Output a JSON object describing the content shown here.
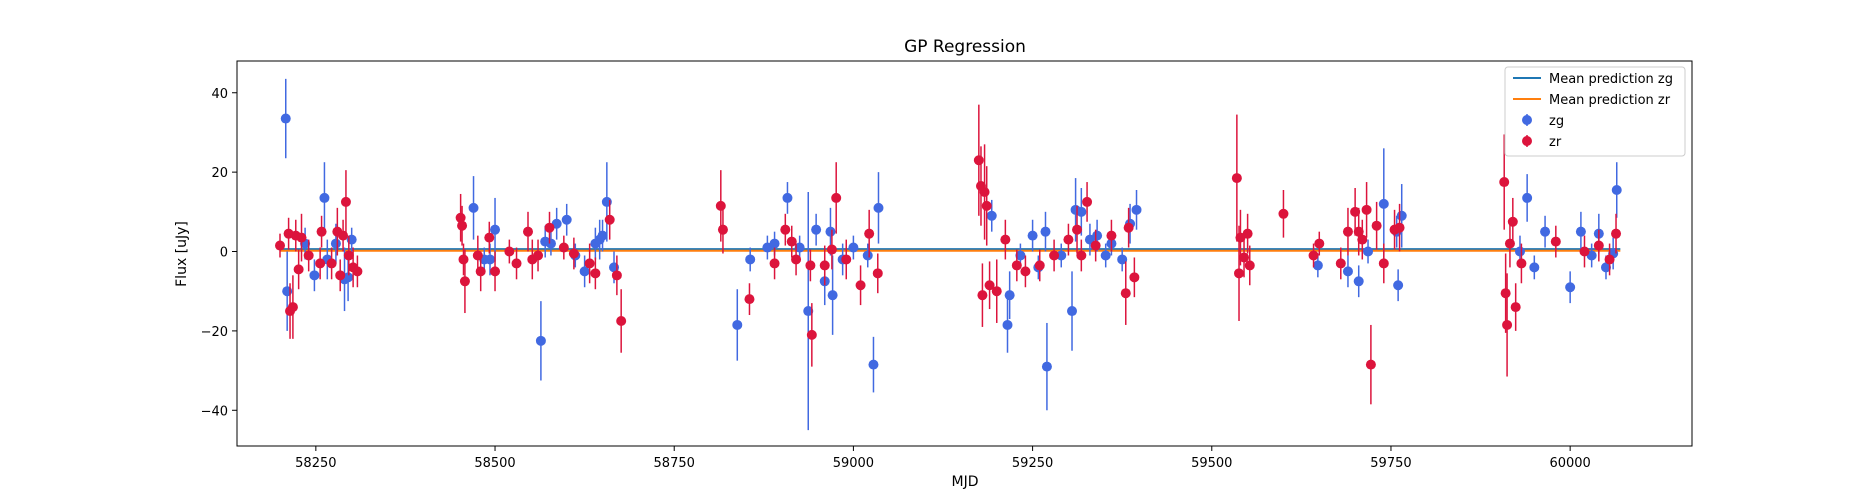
{
  "chart_data": {
    "type": "scatter",
    "title": "GP Regression",
    "xlabel": "MJD",
    "ylabel": "Flux [uJy]",
    "xlim": [
      58140,
      60170
    ],
    "ylim": [
      -49,
      48
    ],
    "xticks": [
      58250,
      58500,
      58750,
      59000,
      59250,
      59500,
      59750,
      60000
    ],
    "yticks": [
      -40,
      -20,
      0,
      20,
      40
    ],
    "legend_position": "top-right",
    "grid": false,
    "lines": [
      {
        "name": "Mean prediction zg",
        "color": "#1f77b4",
        "y": 0.6
      },
      {
        "name": "Mean prediction zr",
        "color": "#ff7f0e",
        "y": 0.2
      }
    ],
    "series": [
      {
        "name": "zg",
        "color": "#4169e1",
        "points": [
          [
            58208,
            33.5,
            10
          ],
          [
            58210,
            -10,
            10
          ],
          [
            58235,
            2,
            4
          ],
          [
            58248,
            -6,
            4
          ],
          [
            58262,
            13.5,
            9
          ],
          [
            58266,
            -2,
            5
          ],
          [
            58278,
            2,
            5
          ],
          [
            58290,
            -7,
            8
          ],
          [
            58295,
            -6.5,
            6
          ],
          [
            58300,
            3,
            3
          ],
          [
            58470,
            11,
            8
          ],
          [
            58485,
            -2,
            3
          ],
          [
            58493,
            -2,
            4
          ],
          [
            58500,
            5.5,
            8
          ],
          [
            58564,
            -22.5,
            10
          ],
          [
            58570,
            2.5,
            4
          ],
          [
            58578,
            2,
            3
          ],
          [
            58586,
            7,
            4
          ],
          [
            58600,
            8,
            4
          ],
          [
            58612,
            -1,
            3
          ],
          [
            58625,
            -5,
            4
          ],
          [
            58640,
            2,
            4
          ],
          [
            58646,
            3,
            5
          ],
          [
            58650,
            4,
            4
          ],
          [
            58656,
            12.5,
            10
          ],
          [
            58666,
            -4,
            4
          ],
          [
            58838,
            -18.5,
            9
          ],
          [
            58856,
            -2,
            3
          ],
          [
            58880,
            1,
            3
          ],
          [
            58890,
            2,
            3
          ],
          [
            58908,
            13.5,
            4
          ],
          [
            58925,
            1,
            3
          ],
          [
            58937,
            -15,
            30
          ],
          [
            58948,
            5.5,
            4
          ],
          [
            58960,
            -7.5,
            6
          ],
          [
            58968,
            5,
            6
          ],
          [
            58971,
            -11,
            10
          ],
          [
            58985,
            -2,
            4
          ],
          [
            59000,
            1,
            3
          ],
          [
            59020,
            -1,
            3
          ],
          [
            59028,
            -28.5,
            7
          ],
          [
            59035,
            11,
            9
          ],
          [
            59193,
            9,
            4
          ],
          [
            59215,
            -18.5,
            7
          ],
          [
            59218,
            -11,
            6
          ],
          [
            59233,
            -1,
            3
          ],
          [
            59250,
            4,
            4
          ],
          [
            59258,
            -4,
            3
          ],
          [
            59268,
            5,
            5
          ],
          [
            59270,
            -29,
            11
          ],
          [
            59290,
            -1,
            3
          ],
          [
            59305,
            -15,
            10
          ],
          [
            59310,
            10.5,
            8
          ],
          [
            59318,
            10,
            6
          ],
          [
            59330,
            3,
            4
          ],
          [
            59340,
            4,
            4
          ],
          [
            59352,
            -1,
            3
          ],
          [
            59360,
            2,
            3
          ],
          [
            59375,
            -2,
            3
          ],
          [
            59386,
            7,
            5
          ],
          [
            59395,
            10.5,
            5
          ],
          [
            59648,
            -3.5,
            3
          ],
          [
            59690,
            -5,
            4
          ],
          [
            59705,
            -7.5,
            4
          ],
          [
            59718,
            0,
            3
          ],
          [
            59740,
            12,
            14
          ],
          [
            59758,
            5,
            4
          ],
          [
            59760,
            -8.5,
            4
          ],
          [
            59765,
            9,
            8
          ],
          [
            59930,
            0,
            4
          ],
          [
            59940,
            13.5,
            6
          ],
          [
            59950,
            -4,
            3
          ],
          [
            59965,
            5,
            4
          ],
          [
            60000,
            -9,
            4
          ],
          [
            60015,
            5,
            5
          ],
          [
            60030,
            -1,
            3
          ],
          [
            60040,
            4.5,
            5
          ],
          [
            60050,
            -4,
            3
          ],
          [
            60060,
            -0.5,
            4
          ],
          [
            60065,
            15.5,
            7
          ]
        ]
      },
      {
        "name": "zr",
        "color": "#dc143c",
        "points": [
          [
            58200,
            1.5,
            3
          ],
          [
            58212,
            4.5,
            4
          ],
          [
            58214,
            -15,
            7
          ],
          [
            58218,
            -14,
            8
          ],
          [
            58222,
            4,
            4
          ],
          [
            58226,
            -4.5,
            5
          ],
          [
            58230,
            3.5,
            6
          ],
          [
            58240,
            -1,
            4
          ],
          [
            58256,
            -3,
            4
          ],
          [
            58258,
            5,
            4
          ],
          [
            58272,
            -3,
            4
          ],
          [
            58280,
            5,
            6
          ],
          [
            58284,
            -6,
            4
          ],
          [
            58288,
            4,
            4
          ],
          [
            58292,
            12.5,
            8
          ],
          [
            58296,
            -1,
            5
          ],
          [
            58302,
            -4,
            5
          ],
          [
            58308,
            -5,
            4
          ],
          [
            58452,
            8.5,
            6
          ],
          [
            58454,
            6.5,
            5
          ],
          [
            58456,
            -2,
            4
          ],
          [
            58458,
            -7.5,
            8
          ],
          [
            58476,
            -1,
            5
          ],
          [
            58480,
            -5,
            5
          ],
          [
            58492,
            3.5,
            4
          ],
          [
            58500,
            -5,
            5
          ],
          [
            58520,
            0,
            3
          ],
          [
            58530,
            -3,
            4
          ],
          [
            58546,
            5,
            5
          ],
          [
            58552,
            -2,
            5
          ],
          [
            58560,
            -1,
            4
          ],
          [
            58576,
            6,
            4
          ],
          [
            58596,
            1,
            3
          ],
          [
            58610,
            -0.5,
            4
          ],
          [
            58632,
            -3,
            5
          ],
          [
            58640,
            -5.5,
            4
          ],
          [
            58660,
            8,
            5
          ],
          [
            58670,
            -6,
            5
          ],
          [
            58676,
            -17.5,
            8
          ],
          [
            58815,
            11.5,
            9
          ],
          [
            58818,
            5.5,
            6
          ],
          [
            58855,
            -12,
            4
          ],
          [
            58890,
            -3,
            4
          ],
          [
            58905,
            5.5,
            4
          ],
          [
            58914,
            2.5,
            4
          ],
          [
            58920,
            -2,
            4
          ],
          [
            58940,
            -3.5,
            4
          ],
          [
            58942,
            -21,
            8
          ],
          [
            58960,
            -3.5,
            5
          ],
          [
            58970,
            0.5,
            5
          ],
          [
            58976,
            13.5,
            9
          ],
          [
            58990,
            -2,
            5
          ],
          [
            59010,
            -8.5,
            5
          ],
          [
            59022,
            4.5,
            6
          ],
          [
            59034,
            -5.5,
            5
          ],
          [
            59175,
            23,
            14
          ],
          [
            59178,
            16.5,
            10
          ],
          [
            59180,
            -11,
            8
          ],
          [
            59183,
            15,
            12
          ],
          [
            59186,
            11.5,
            10
          ],
          [
            59190,
            -8.5,
            6
          ],
          [
            59200,
            -10,
            8
          ],
          [
            59212,
            3,
            5
          ],
          [
            59228,
            -3.5,
            4
          ],
          [
            59240,
            -5,
            4
          ],
          [
            59260,
            -3.5,
            4
          ],
          [
            59280,
            -1,
            4
          ],
          [
            59300,
            3,
            4
          ],
          [
            59312,
            5.5,
            6
          ],
          [
            59318,
            -1,
            4
          ],
          [
            59326,
            12.5,
            5
          ],
          [
            59338,
            1.5,
            4
          ],
          [
            59360,
            4,
            4
          ],
          [
            59380,
            -10.5,
            8
          ],
          [
            59384,
            6,
            5
          ],
          [
            59392,
            -6.5,
            5
          ],
          [
            59535,
            18.5,
            16
          ],
          [
            59538,
            -5.5,
            12
          ],
          [
            59540,
            3.5,
            7
          ],
          [
            59545,
            -1.5,
            5
          ],
          [
            59550,
            4.5,
            5
          ],
          [
            59553,
            -3.5,
            5
          ],
          [
            59600,
            9.5,
            6
          ],
          [
            59642,
            -1,
            3
          ],
          [
            59650,
            2,
            3
          ],
          [
            59680,
            -3,
            4
          ],
          [
            59690,
            5,
            6
          ],
          [
            59700,
            10,
            6
          ],
          [
            59705,
            5,
            6
          ],
          [
            59710,
            3,
            5
          ],
          [
            59716,
            10.5,
            7
          ],
          [
            59722,
            -28.5,
            10
          ],
          [
            59730,
            6.5,
            6
          ],
          [
            59740,
            -3,
            5
          ],
          [
            59755,
            5.5,
            5
          ],
          [
            59762,
            6,
            6
          ],
          [
            59908,
            17.5,
            12
          ],
          [
            59910,
            -10.5,
            10
          ],
          [
            59912,
            -18.5,
            13
          ],
          [
            59916,
            2,
            6
          ],
          [
            59920,
            7.5,
            6
          ],
          [
            59924,
            -14,
            6
          ],
          [
            59932,
            -3,
            5
          ],
          [
            59980,
            2.5,
            4
          ],
          [
            60020,
            0,
            4
          ],
          [
            60040,
            1.5,
            4
          ],
          [
            60055,
            -2,
            4
          ],
          [
            60064,
            4.5,
            5
          ]
        ]
      }
    ]
  }
}
